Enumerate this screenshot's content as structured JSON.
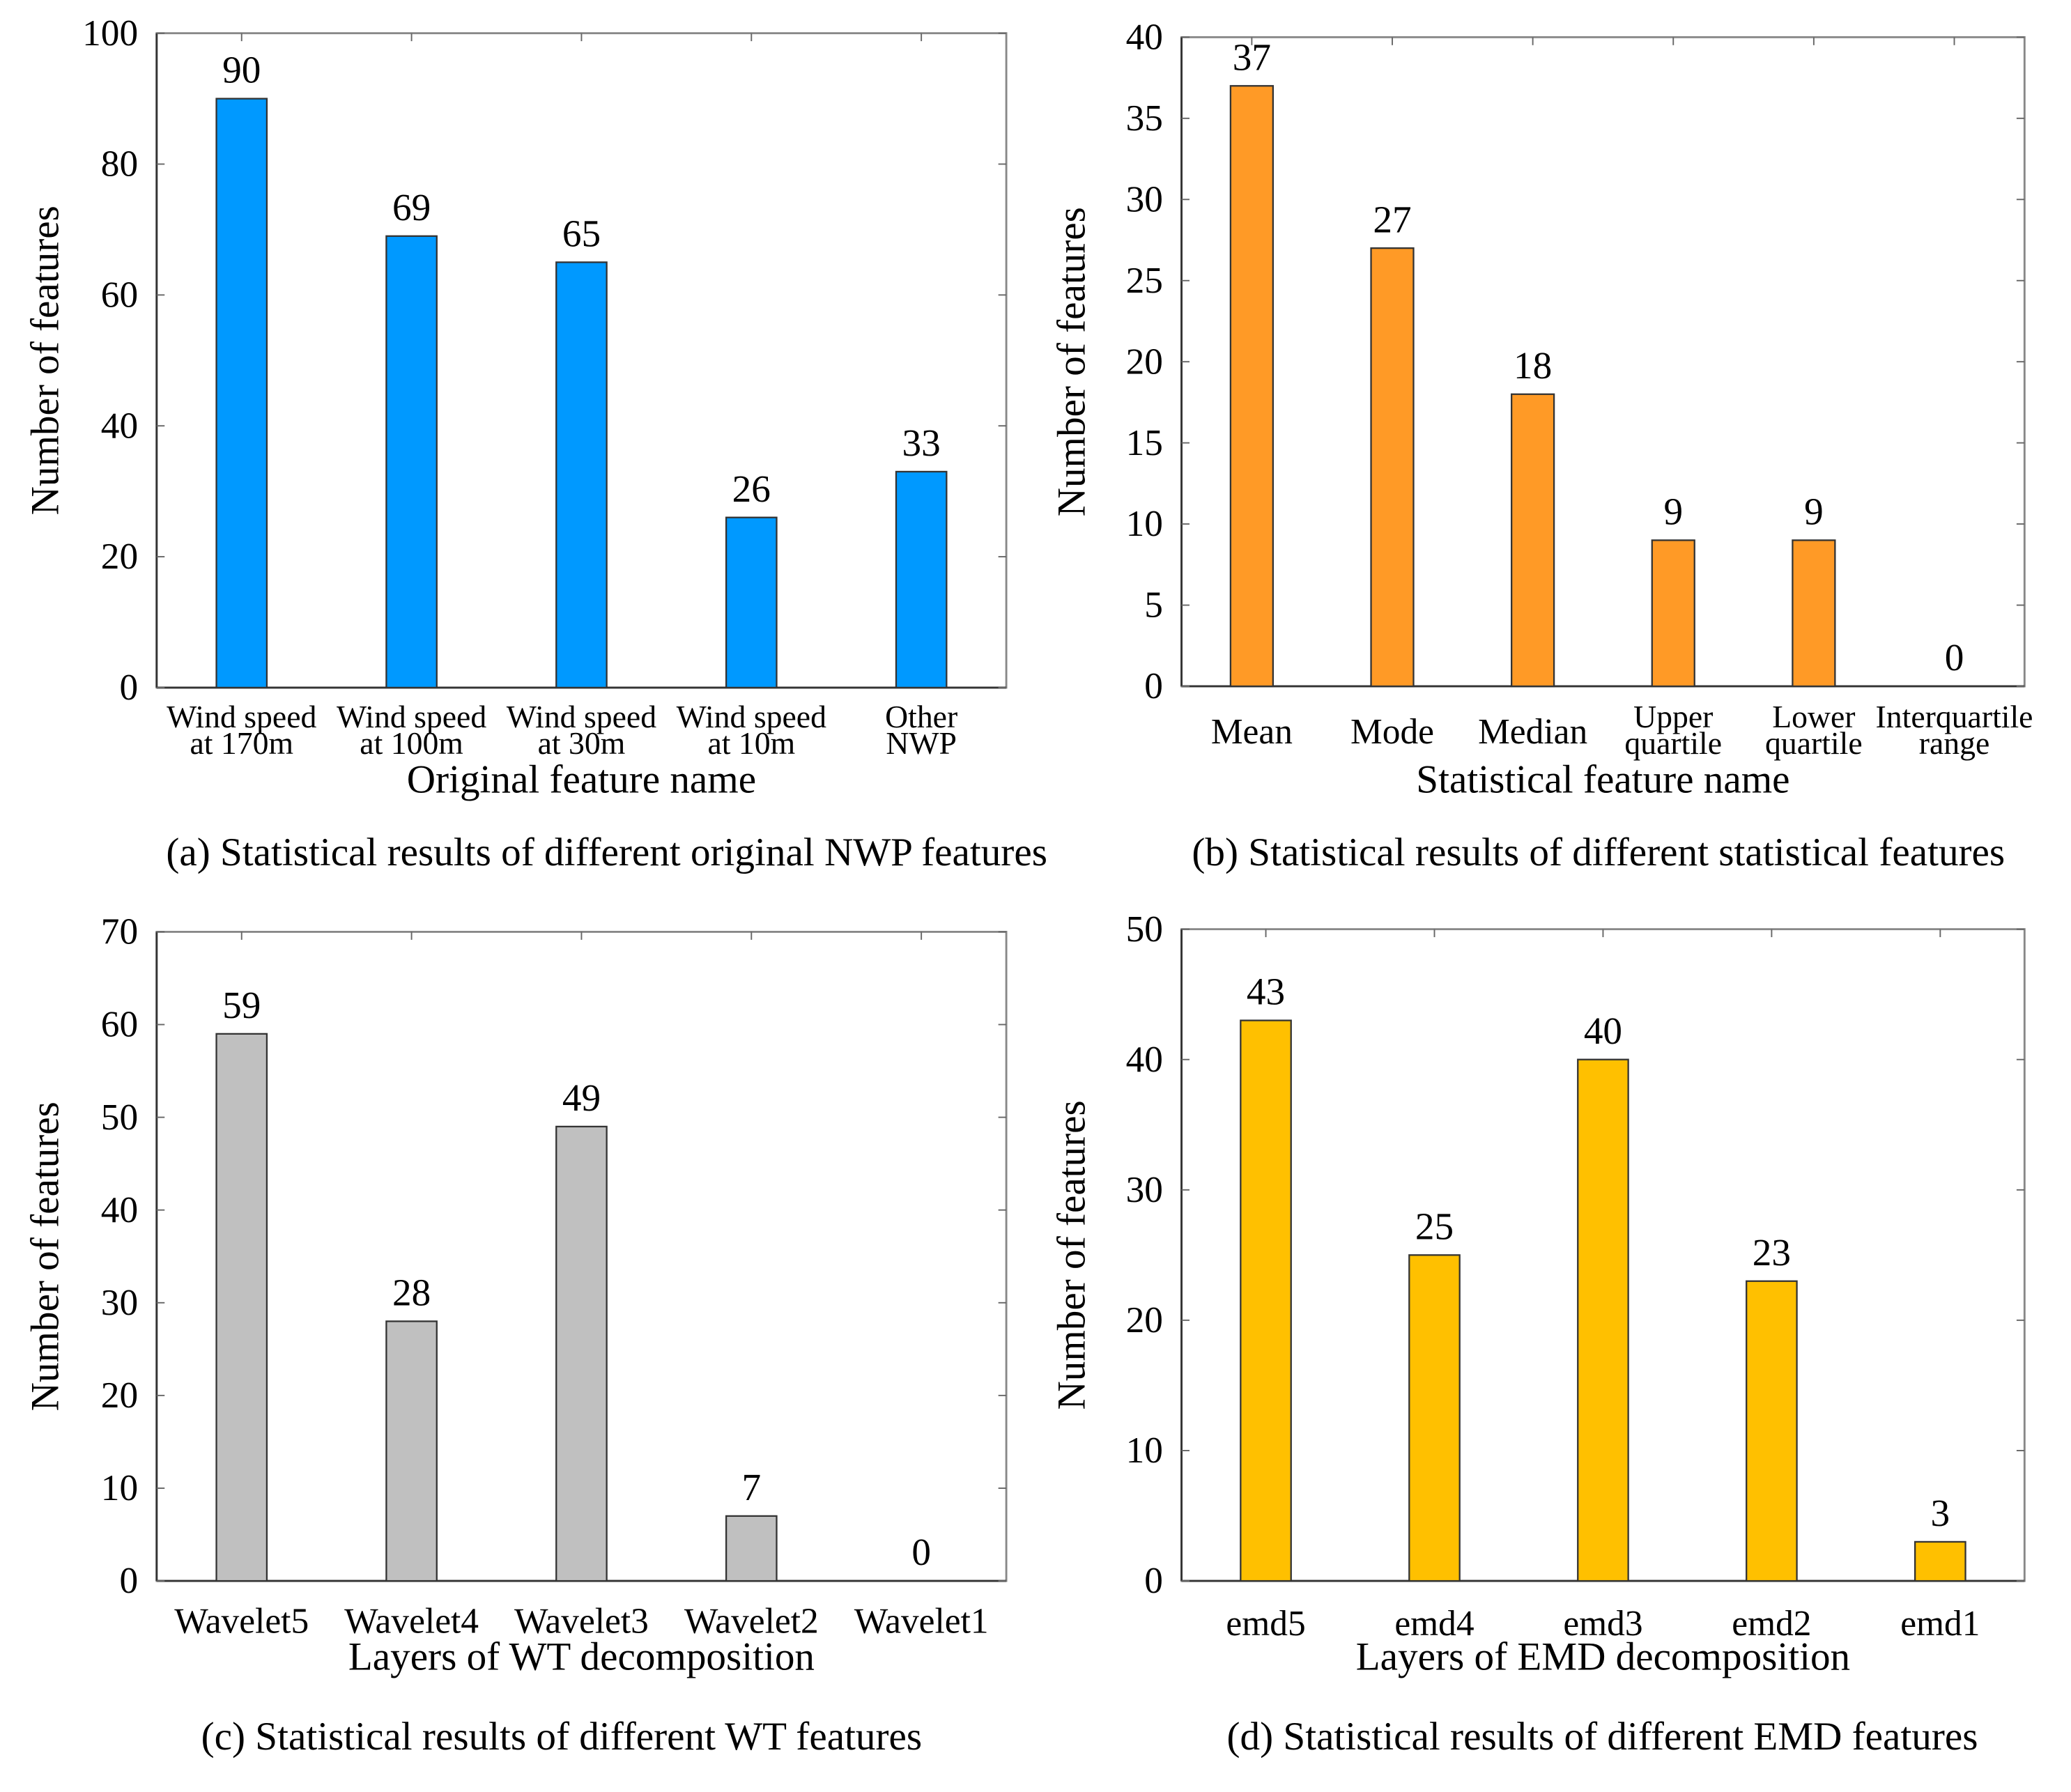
{
  "chart_data": [
    {
      "type": "bar",
      "caption": "(a) Statistical results of different original NWP features",
      "categories": [
        [
          "Wind speed",
          "at 170m"
        ],
        [
          "Wind speed",
          "at 100m"
        ],
        [
          "Wind speed",
          "at 30m"
        ],
        [
          "Wind speed",
          "at 10m"
        ],
        [
          "Other",
          "NWP"
        ]
      ],
      "values": [
        90,
        69,
        65,
        26,
        33
      ],
      "xlabel": "Original feature name",
      "ylabel": "Number of features",
      "ylim": [
        0,
        100
      ],
      "yticks": [
        0,
        20,
        40,
        60,
        80,
        100
      ],
      "color": "#0099FF"
    },
    {
      "type": "bar",
      "caption": "(b) Statistical results of different statistical features",
      "categories": [
        [
          "Mean"
        ],
        [
          "Mode"
        ],
        [
          "Median"
        ],
        [
          "Upper",
          "quartile"
        ],
        [
          "Lower",
          "quartile"
        ],
        [
          "Interquartile",
          "range"
        ]
      ],
      "values": [
        37,
        27,
        18,
        9,
        9,
        0
      ],
      "xlabel": "Statistical feature name",
      "ylabel": "Number of features",
      "ylim": [
        0,
        40
      ],
      "yticks": [
        0,
        5,
        10,
        15,
        20,
        25,
        30,
        35,
        40
      ],
      "color": "#FF9A26"
    },
    {
      "type": "bar",
      "caption": "(c) Statistical results of different WT  features",
      "categories": [
        [
          "Wavelet5"
        ],
        [
          "Wavelet4"
        ],
        [
          "Wavelet3"
        ],
        [
          "Wavelet2"
        ],
        [
          "Wavelet1"
        ]
      ],
      "values": [
        59,
        28,
        49,
        7,
        0
      ],
      "xlabel": "Layers of WT decomposition",
      "ylabel": "Number of features",
      "ylim": [
        0,
        70
      ],
      "yticks": [
        0,
        10,
        20,
        30,
        40,
        50,
        60,
        70
      ],
      "color": "#C0C0C0"
    },
    {
      "type": "bar",
      "caption": "(d) Statistical results of different EMD features",
      "categories": [
        [
          "emd5"
        ],
        [
          "emd4"
        ],
        [
          "emd3"
        ],
        [
          "emd2"
        ],
        [
          "emd1"
        ]
      ],
      "values": [
        43,
        25,
        40,
        23,
        3
      ],
      "xlabel": "Layers of EMD decomposition",
      "ylabel": "Number of features",
      "ylim": [
        0,
        50
      ],
      "yticks": [
        0,
        10,
        20,
        30,
        40,
        50
      ],
      "color": "#FFC000"
    }
  ]
}
